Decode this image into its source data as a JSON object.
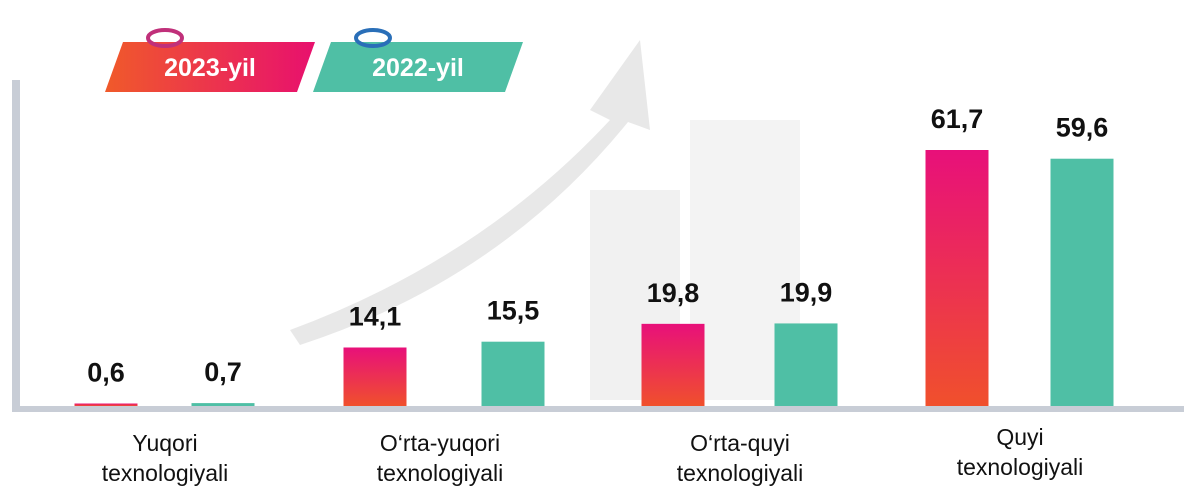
{
  "chart_data": {
    "type": "bar",
    "categories": [
      "Yuqori texnologiyali",
      "O‘rta-yuqori texnologiyali",
      "O‘rta-quyi texnologiyali",
      "Quyi texnologiyali"
    ],
    "series": [
      {
        "name": "2023-yil",
        "color": "#e8205f",
        "values": [
          0.6,
          14.1,
          19.8,
          61.7
        ],
        "value_labels": [
          "0,6",
          "14,1",
          "19,8",
          "61,7"
        ]
      },
      {
        "name": "2022-yil",
        "color": "#4fbfa5",
        "values": [
          0.7,
          15.5,
          19.9,
          59.6
        ],
        "value_labels": [
          "0,7",
          "15,5",
          "19,9",
          "59,6"
        ]
      }
    ],
    "legend": "top-left"
  }
}
